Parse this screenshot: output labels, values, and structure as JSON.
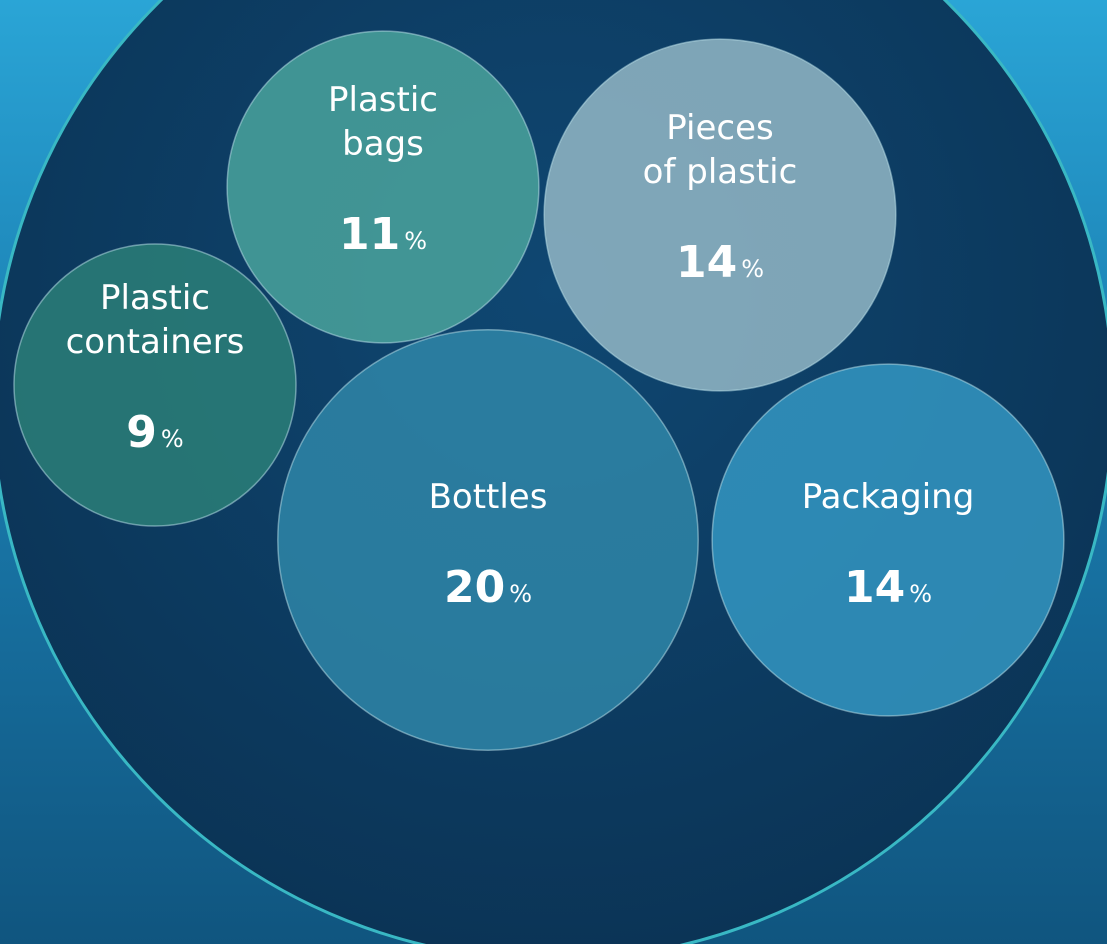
{
  "chart_data": {
    "type": "bubble",
    "categories": [
      [
        "Plastic",
        "bags"
      ],
      [
        "Pieces",
        "of plastic"
      ],
      [
        "Plastic",
        "containers"
      ],
      [
        "Bottles"
      ],
      [
        "Packaging"
      ]
    ],
    "values": [
      11,
      14,
      9,
      20,
      14
    ],
    "unit": "%",
    "colors": [
      "#4aa39c",
      "#93b7c6",
      "#2c7f78",
      "#2f86a8",
      "#3496c2"
    ]
  }
}
